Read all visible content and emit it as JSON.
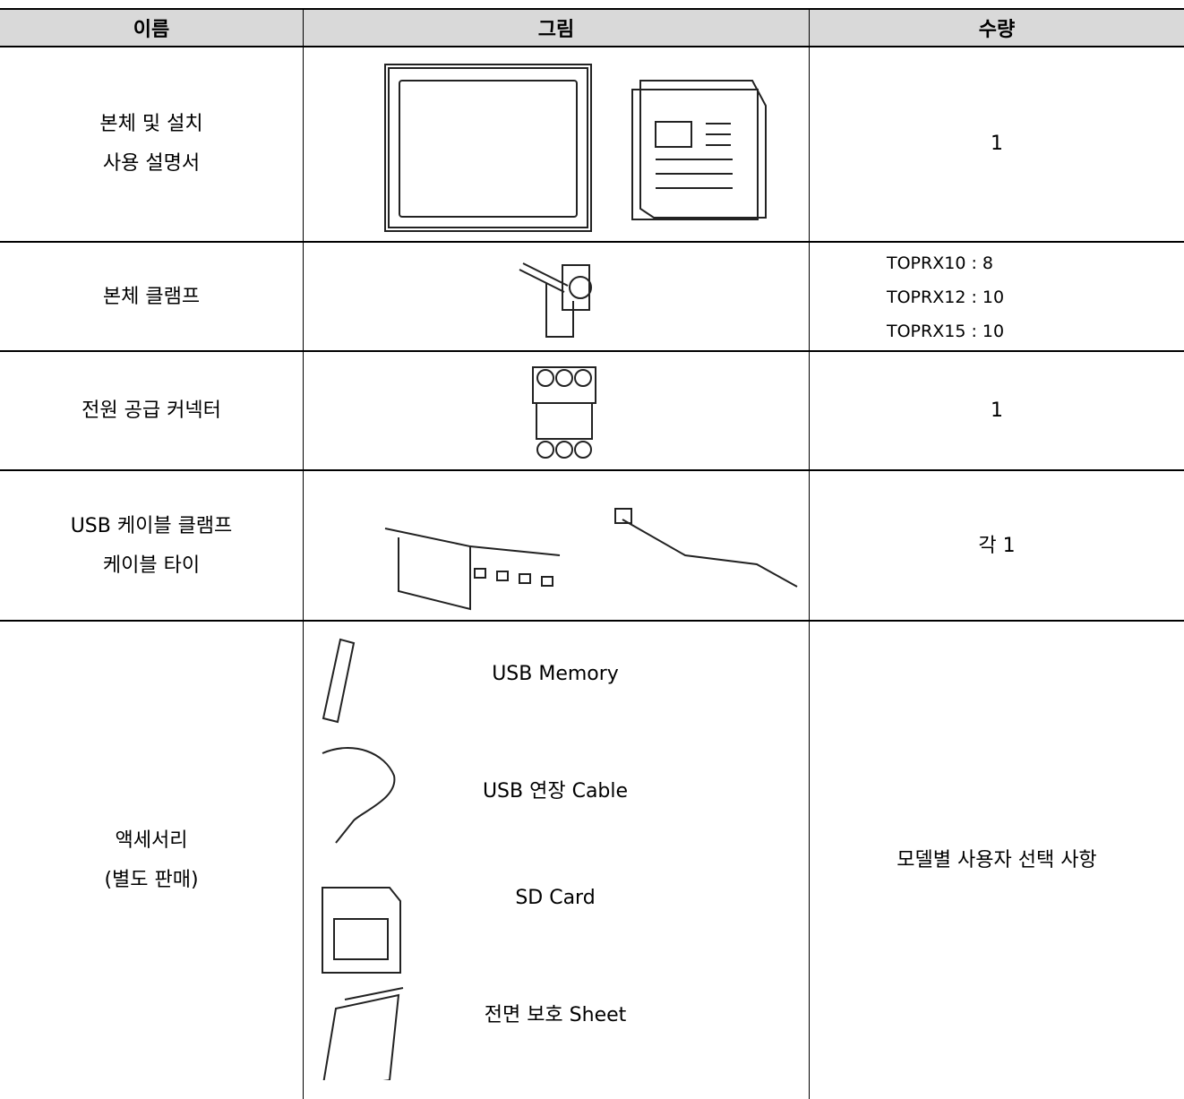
{
  "table": {
    "header": [
      "이름",
      "그림",
      "수량"
    ],
    "rows": [
      {
        "name": [
          "본체 및 설치",
          "사용 설명서"
        ],
        "quantity": [
          "1"
        ]
      },
      {
        "name": [
          "본체 클램프"
        ],
        "quantity": [
          "TOPRX10 :  8",
          "TOPRX12 : 10",
          "TOPRX15 : 10"
        ]
      },
      {
        "name": [
          "전원 공급 커넥터"
        ],
        "quantity": [
          "1"
        ]
      },
      {
        "name": [
          "USB 케이블 클램프",
          "케이블 타이"
        ],
        "quantity": [
          "각 1"
        ]
      },
      {
        "name": [
          "액세서리",
          "(별도 판매)"
        ],
        "quantity": [
          "모델별 사용자 선택 사항"
        ],
        "items": [
          "USB Memory",
          "USB 연장 Cable",
          "SD Card",
          "전면 보호 Sheet"
        ]
      }
    ]
  }
}
